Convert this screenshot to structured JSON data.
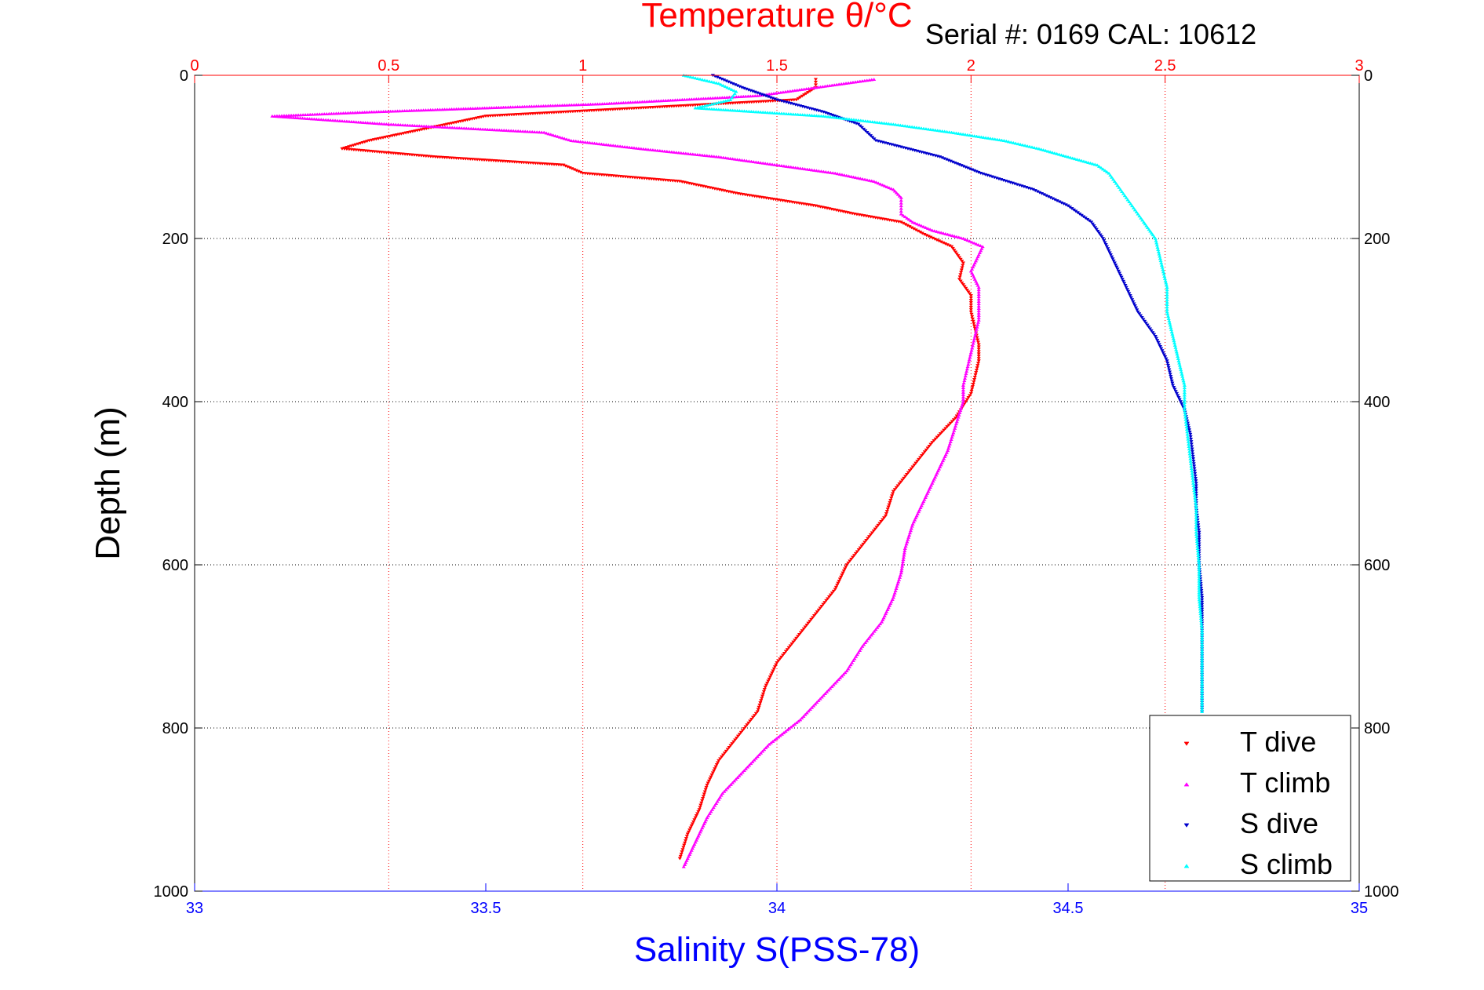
{
  "chart_data": {
    "type": "scatter",
    "title": "Serial #: 0169 CAL: 10612",
    "ylabel": "Depth (m)",
    "ylim": [
      1000,
      0
    ],
    "yticks": [
      0,
      200,
      400,
      600,
      800,
      1000
    ],
    "temperature_axis": {
      "label": "Temperature θ/°C",
      "lim": [
        0,
        3
      ],
      "ticks": [
        0,
        0.5,
        1,
        1.5,
        2,
        2.5,
        3
      ],
      "tick_labels": [
        "0",
        "0.5",
        "1",
        "1.5",
        "2",
        "2.5",
        "3"
      ],
      "color": "#ff0000",
      "position": "top"
    },
    "salinity_axis": {
      "label": "Salinity S(PSS-78)",
      "lim": [
        33,
        35
      ],
      "ticks": [
        33,
        33.5,
        34,
        34.5,
        35
      ],
      "tick_labels": [
        "33",
        "33.5",
        "34",
        "34.5",
        "35"
      ],
      "color": "#0000ff",
      "position": "bottom"
    },
    "grid": true,
    "legend": {
      "placement": "bottom-right",
      "entries": [
        "T dive",
        "T climb",
        "S dive",
        "S climb"
      ]
    },
    "series": [
      {
        "name": "T dive",
        "axis": "temperature",
        "color": "#ff0000",
        "marker": "triangle-down",
        "depth": [
          5,
          15,
          30,
          40,
          50,
          60,
          70,
          80,
          90,
          100,
          110,
          120,
          130,
          145,
          160,
          170,
          180,
          195,
          210,
          230,
          250,
          270,
          290,
          310,
          330,
          350,
          370,
          390,
          420,
          450,
          480,
          510,
          540,
          570,
          600,
          630,
          660,
          690,
          720,
          750,
          780,
          810,
          840,
          870,
          900,
          930,
          960
        ],
        "values": [
          1.6,
          1.6,
          1.55,
          1.15,
          0.75,
          0.65,
          0.55,
          0.45,
          0.38,
          0.62,
          0.95,
          1.0,
          1.25,
          1.4,
          1.6,
          1.7,
          1.82,
          1.88,
          1.95,
          1.98,
          1.97,
          2.0,
          2.0,
          2.01,
          2.02,
          2.02,
          2.01,
          2.0,
          1.96,
          1.9,
          1.85,
          1.8,
          1.78,
          1.73,
          1.68,
          1.65,
          1.6,
          1.55,
          1.5,
          1.47,
          1.45,
          1.4,
          1.35,
          1.32,
          1.3,
          1.27,
          1.25
        ]
      },
      {
        "name": "T climb",
        "axis": "temperature",
        "color": "#ff00ff",
        "marker": "triangle-up",
        "depth": [
          5,
          15,
          25,
          35,
          45,
          50,
          60,
          70,
          80,
          90,
          100,
          110,
          120,
          130,
          140,
          150,
          160,
          170,
          180,
          190,
          200,
          210,
          220,
          240,
          260,
          280,
          300,
          320,
          340,
          360,
          380,
          400,
          430,
          460,
          490,
          520,
          550,
          580,
          610,
          640,
          670,
          700,
          730,
          760,
          790,
          820,
          850,
          880,
          910,
          940,
          970
        ],
        "values": [
          1.75,
          1.6,
          1.45,
          1.05,
          0.45,
          0.2,
          0.5,
          0.9,
          0.97,
          1.15,
          1.35,
          1.5,
          1.65,
          1.75,
          1.8,
          1.82,
          1.82,
          1.82,
          1.85,
          1.9,
          1.98,
          2.03,
          2.02,
          2.0,
          2.02,
          2.02,
          2.02,
          2.01,
          2.0,
          1.99,
          1.98,
          1.98,
          1.96,
          1.94,
          1.91,
          1.88,
          1.85,
          1.83,
          1.82,
          1.8,
          1.77,
          1.72,
          1.68,
          1.62,
          1.56,
          1.48,
          1.42,
          1.36,
          1.32,
          1.29,
          1.26
        ]
      },
      {
        "name": "S dive",
        "axis": "salinity",
        "color": "#0000cc",
        "marker": "triangle-down",
        "depth": [
          0,
          15,
          30,
          45,
          60,
          80,
          100,
          120,
          140,
          160,
          180,
          200,
          230,
          260,
          290,
          320,
          350,
          380,
          410,
          440,
          470,
          500,
          530,
          560,
          600,
          640,
          680,
          720,
          760,
          780
        ],
        "values": [
          33.89,
          33.94,
          34.0,
          34.08,
          34.14,
          34.17,
          34.28,
          34.35,
          34.44,
          34.5,
          34.54,
          34.56,
          34.58,
          34.6,
          34.62,
          34.65,
          34.67,
          34.68,
          34.7,
          34.71,
          34.715,
          34.72,
          34.72,
          34.725,
          34.725,
          34.73,
          34.73,
          34.73,
          34.73,
          34.73
        ]
      },
      {
        "name": "S climb",
        "axis": "salinity",
        "color": "#00ffff",
        "marker": "triangle-up",
        "depth": [
          0,
          10,
          20,
          30,
          40,
          50,
          60,
          70,
          80,
          90,
          100,
          110,
          120,
          130,
          140,
          150,
          160,
          170,
          180,
          200,
          230,
          260,
          290,
          320,
          350,
          380,
          410,
          440,
          470,
          500,
          530,
          560,
          600,
          640,
          680,
          720,
          760,
          780
        ],
        "values": [
          33.84,
          33.9,
          33.93,
          33.92,
          33.86,
          34.08,
          34.2,
          34.3,
          34.39,
          34.45,
          34.5,
          34.55,
          34.57,
          34.58,
          34.59,
          34.6,
          34.61,
          34.62,
          34.63,
          34.65,
          34.66,
          34.67,
          34.67,
          34.68,
          34.69,
          34.7,
          34.7,
          34.705,
          34.71,
          34.715,
          34.72,
          34.72,
          34.725,
          34.725,
          34.73,
          34.73,
          34.73,
          34.73
        ]
      }
    ]
  }
}
